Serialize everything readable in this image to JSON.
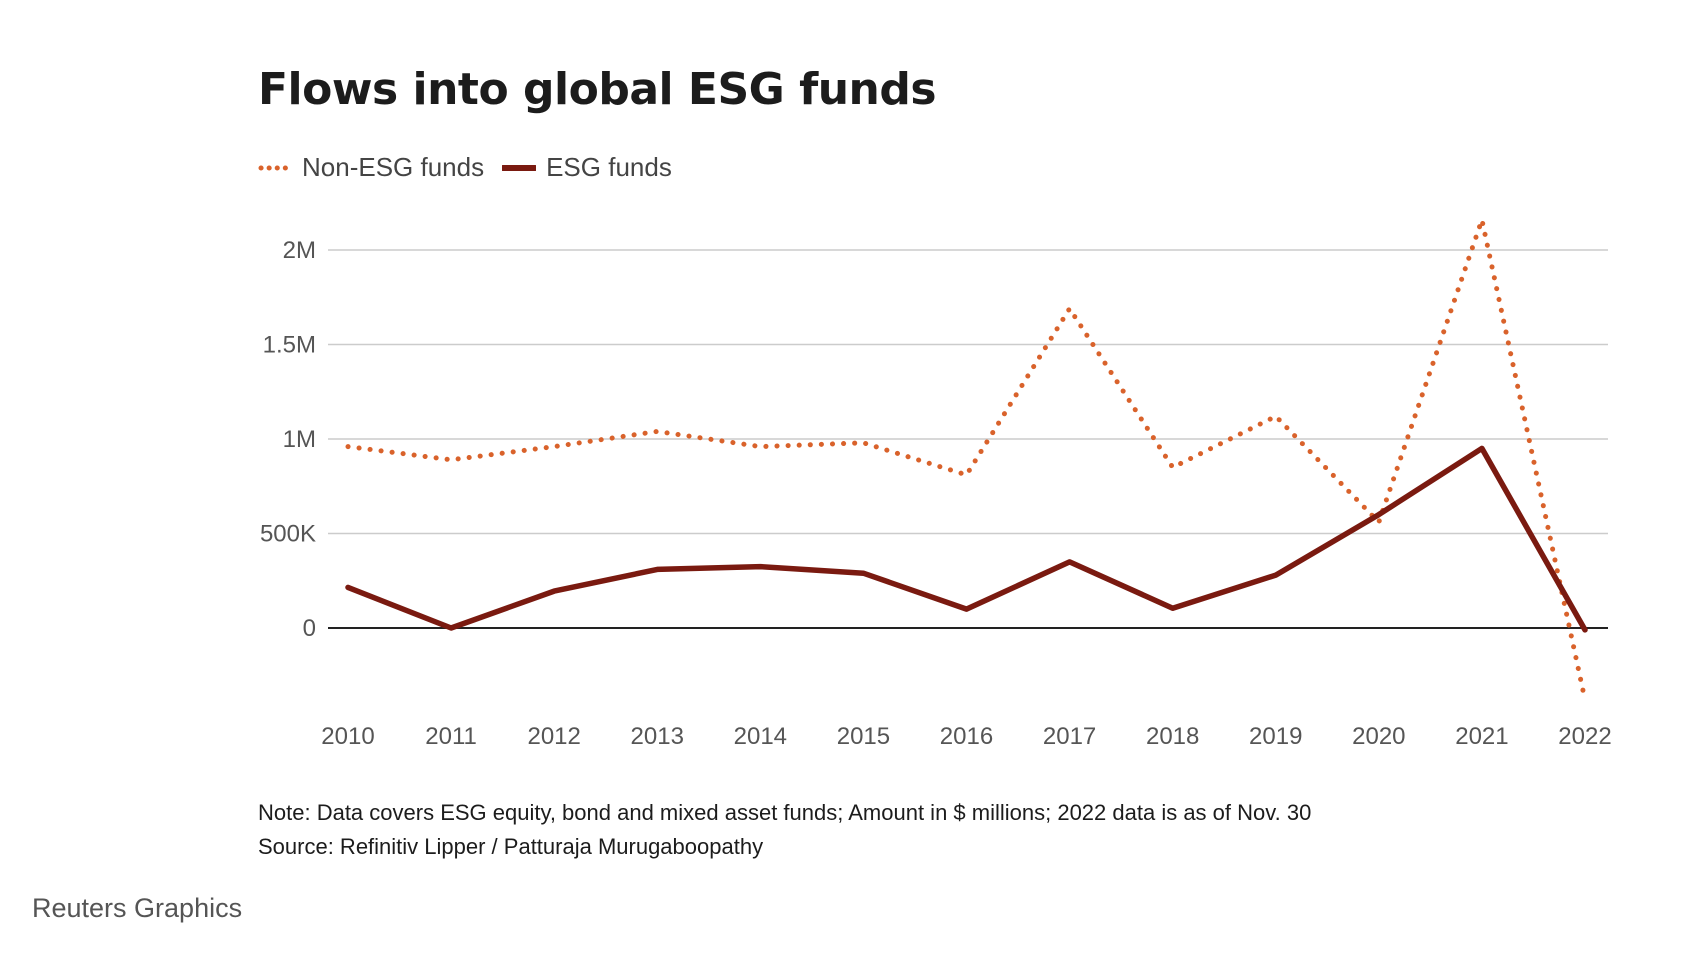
{
  "chart_data": {
    "type": "line",
    "title": "Flows into global ESG funds",
    "xlabel": "",
    "ylabel": "",
    "x": [
      2010,
      2011,
      2012,
      2013,
      2014,
      2015,
      2016,
      2017,
      2018,
      2019,
      2020,
      2021,
      2022
    ],
    "x_tick_labels": [
      "2010",
      "2011",
      "2012",
      "2013",
      "2014",
      "2015",
      "2016",
      "2017",
      "2018",
      "2019",
      "2020",
      "2021",
      "2022"
    ],
    "ylim": [
      -450000,
      2300000
    ],
    "y_ticks": [
      0,
      500000,
      1000000,
      1500000,
      2000000
    ],
    "y_tick_labels": [
      "0",
      "500K",
      "1M",
      "1.5M",
      "2M"
    ],
    "grid": true,
    "legend_position": "top-left",
    "series": [
      {
        "name": "Non-ESG funds",
        "style": "dotted",
        "color": "#d9622b",
        "values": [
          960000,
          890000,
          960000,
          1040000,
          960000,
          980000,
          810000,
          1690000,
          850000,
          1120000,
          560000,
          2160000,
          -380000
        ]
      },
      {
        "name": "ESG funds",
        "style": "solid",
        "color": "#7a1a10",
        "values": [
          215000,
          0,
          195000,
          310000,
          325000,
          290000,
          100000,
          350000,
          105000,
          280000,
          600000,
          950000,
          -10000
        ]
      }
    ]
  },
  "note": "Note: Data covers ESG equity, bond and mixed asset funds; Amount in $ millions; 2022 data is as of Nov. 30",
  "source": "Source: Refinitiv Lipper / Patturaja Murugaboopathy",
  "credit": "Reuters Graphics",
  "colors": {
    "gridline": "#cccccc",
    "zero_line": "#222222"
  }
}
